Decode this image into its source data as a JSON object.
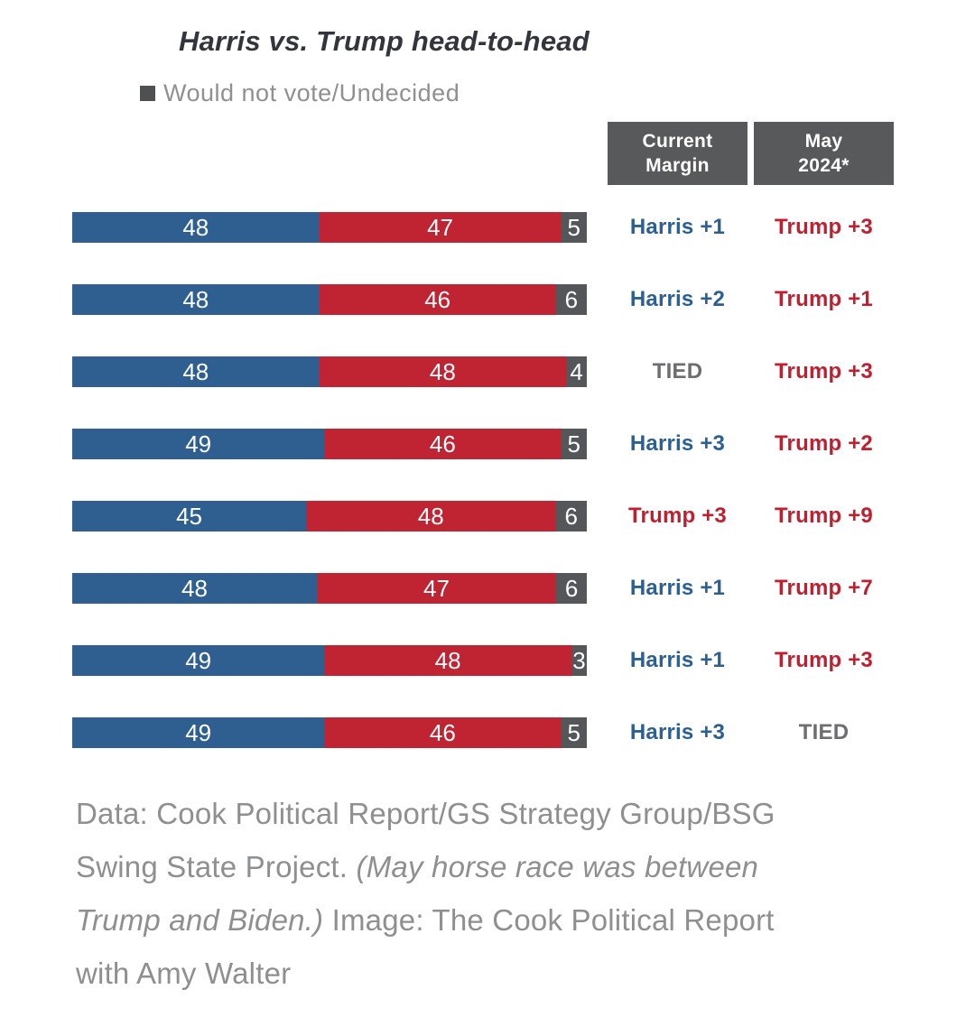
{
  "title": "Harris vs. Trump head-to-head",
  "legend": {
    "label": "Would not vote/Undecided",
    "swatch_color": "#4f5052"
  },
  "table_headers": {
    "current_margin": "Current\nMargin",
    "may_2024": "May\n2024*"
  },
  "colors": {
    "title_text": "#32353b",
    "header_bg": "#58595b",
    "harris_bar": "#2e5f90",
    "trump_bar": "#c02331",
    "undecided_bar": "#55565a",
    "harris_text": "#2d5f91",
    "trump_text": "#bf2030",
    "tied_text": "#6d6e71",
    "footer_text": "#8e8f91",
    "bar_value_text": "#ffffff"
  },
  "chart_data": {
    "type": "bar",
    "orientation": "horizontal",
    "stacked": true,
    "title": "Harris vs. Trump head-to-head",
    "series_names": [
      "Harris",
      "Trump",
      "Would not vote/Undecided"
    ],
    "legend_position": "top-left",
    "x_range": [
      0,
      100
    ],
    "grid": false,
    "note": "Rows have no visible category labels; extra columns show current margin and May 2024 margin",
    "rows": [
      {
        "harris": 48,
        "trump": 47,
        "undecided": 5,
        "current_margin": "Harris +1",
        "current_margin_party": "harris",
        "may_2024": "Trump +3",
        "may_2024_party": "trump"
      },
      {
        "harris": 48,
        "trump": 46,
        "undecided": 6,
        "current_margin": "Harris +2",
        "current_margin_party": "harris",
        "may_2024": "Trump +1",
        "may_2024_party": "trump"
      },
      {
        "harris": 48,
        "trump": 48,
        "undecided": 4,
        "current_margin": "TIED",
        "current_margin_party": "tied",
        "may_2024": "Trump +3",
        "may_2024_party": "trump"
      },
      {
        "harris": 49,
        "trump": 46,
        "undecided": 5,
        "current_margin": "Harris +3",
        "current_margin_party": "harris",
        "may_2024": "Trump +2",
        "may_2024_party": "trump"
      },
      {
        "harris": 45,
        "trump": 48,
        "undecided": 6,
        "current_margin": "Trump +3",
        "current_margin_party": "trump",
        "may_2024": "Trump +9",
        "may_2024_party": "trump"
      },
      {
        "harris": 48,
        "trump": 47,
        "undecided": 6,
        "current_margin": "Harris +1",
        "current_margin_party": "harris",
        "may_2024": "Trump +7",
        "may_2024_party": "trump"
      },
      {
        "harris": 49,
        "trump": 48,
        "undecided": 3,
        "current_margin": "Harris +1",
        "current_margin_party": "harris",
        "may_2024": "Trump +3",
        "may_2024_party": "trump"
      },
      {
        "harris": 49,
        "trump": 46,
        "undecided": 5,
        "current_margin": "Harris +3",
        "current_margin_party": "harris",
        "may_2024": "TIED",
        "may_2024_party": "tied"
      }
    ]
  },
  "footer": {
    "lines": [
      [
        {
          "text": "Data: Cook Political Report/GS Strategy Group/BSG",
          "italic": false
        }
      ],
      [
        {
          "text": "Swing State Project. ",
          "italic": false
        },
        {
          "text": "(May horse race was between",
          "italic": true
        }
      ],
      [
        {
          "text": "Trump and Biden.)",
          "italic": true
        },
        {
          "text": " Image: The Cook Political Report",
          "italic": false
        }
      ],
      [
        {
          "text": "with Amy Walter",
          "italic": false
        }
      ]
    ]
  }
}
